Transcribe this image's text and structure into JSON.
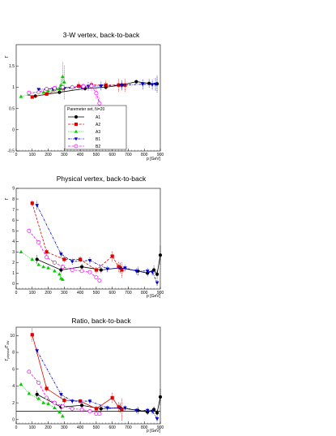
{
  "chart_data": [
    {
      "type": "scatter",
      "title": "3-W vertex, back-to-back",
      "xlabel": "p [GeV]",
      "ylabel": "Γ",
      "xlim": [
        0,
        900
      ],
      "ylim": [
        -0.5,
        2
      ],
      "xticks": [
        "0",
        "100",
        "200",
        "300",
        "400",
        "500",
        "600",
        "700",
        "800",
        "900"
      ],
      "yticks": [
        "-0.5",
        "0",
        "0.5",
        "1",
        "1.5"
      ],
      "legend": {
        "title": "Paremeter set, N=20",
        "placement": "lower-center"
      },
      "series": [
        {
          "name": "A1",
          "style": "solid",
          "color": "#000000",
          "marker": "circle",
          "x": [
            120,
            270,
            430,
            560,
            660,
            750,
            830,
            880
          ],
          "y": [
            0.79,
            0.88,
            0.97,
            1.0,
            1.05,
            1.13,
            1.09,
            1.08
          ],
          "err": [
            0.02,
            0.04,
            0.05,
            0.05,
            0.08,
            0.04,
            0.1,
            0.2
          ]
        },
        {
          "name": "A2",
          "style": "dashed",
          "color": "#e00000",
          "marker": "square",
          "x": [
            100,
            190,
            290,
            390,
            470,
            560,
            640,
            680
          ],
          "y": [
            0.77,
            0.84,
            0.98,
            1.03,
            1.05,
            1.05,
            1.05,
            1.05
          ],
          "err": [
            0.03,
            0.04,
            0.07,
            0.1,
            0.08,
            0.1,
            0.15,
            0.15
          ]
        },
        {
          "name": "A3",
          "style": "dotted",
          "color": "#00cc00",
          "marker": "triangle-up",
          "x": [
            30,
            80,
            140,
            170,
            200,
            230,
            250,
            270,
            280,
            290,
            300
          ],
          "y": [
            0.78,
            0.83,
            0.9,
            0.88,
            0.91,
            0.94,
            0.97,
            0.96,
            1.05,
            1.25,
            1.12
          ],
          "err": [
            0.02,
            0.02,
            0.03,
            0.03,
            0.04,
            0.05,
            0.08,
            0.1,
            0.15,
            0.35,
            0.4
          ]
        },
        {
          "name": "B1",
          "style": "dash-dot",
          "color": "#0000cc",
          "marker": "triangle-down",
          "x": [
            140,
            230,
            300,
            410,
            450,
            530,
            660,
            790,
            850,
            870
          ],
          "y": [
            0.95,
            0.96,
            0.97,
            1.0,
            1.02,
            1.03,
            1.05,
            1.07,
            1.06,
            1.07
          ],
          "err": [
            0.03,
            0.04,
            0.05,
            0.08,
            0.1,
            0.1,
            0.12,
            0.12,
            0.12,
            0.15
          ]
        },
        {
          "name": "B2",
          "style": "dashed",
          "color": "#ff00ff",
          "marker": "circle-open",
          "x": [
            80,
            140,
            190,
            240,
            290,
            350,
            420,
            470,
            500,
            520
          ],
          "y": [
            0.87,
            0.88,
            0.96,
            0.98,
            1.0,
            1.0,
            1.02,
            1.03,
            0.86,
            0.62
          ],
          "err": [
            0.02,
            0.02,
            0.03,
            0.04,
            0.05,
            0.06,
            0.08,
            0.1,
            0.12,
            0.15
          ]
        }
      ]
    },
    {
      "type": "scatter",
      "title": "Physical vertex, back-to-back",
      "xlabel": "p [GeV]",
      "ylabel": "Γ",
      "xlim": [
        0,
        900
      ],
      "ylim": [
        -0.5,
        9
      ],
      "xticks": [
        "0",
        "100",
        "200",
        "300",
        "400",
        "500",
        "600",
        "700",
        "800",
        "900"
      ],
      "yticks": [
        "0",
        "1",
        "2",
        "3",
        "4",
        "5",
        "6",
        "7",
        "8",
        "9"
      ],
      "series": [
        {
          "name": "A1",
          "style": "solid",
          "color": "#000000",
          "marker": "circle",
          "x": [
            130,
            280,
            410,
            530,
            650,
            760,
            820,
            860,
            880,
            900
          ],
          "y": [
            2.3,
            1.3,
            1.6,
            1.3,
            1.5,
            1.2,
            1.0,
            1.3,
            0.9,
            2.7
          ],
          "err": [
            0.4,
            0.3,
            0.3,
            0.3,
            0.5,
            0.4,
            0.3,
            0.4,
            0.4,
            0.9
          ]
        },
        {
          "name": "A2",
          "style": "dashed",
          "color": "#e00000",
          "marker": "square",
          "x": [
            100,
            190,
            300,
            400,
            500,
            600,
            640,
            660
          ],
          "y": [
            7.6,
            3.0,
            2.3,
            2.3,
            1.3,
            2.6,
            1.6,
            1.3
          ],
          "err": [
            0.3,
            0.3,
            0.3,
            0.3,
            0.3,
            0.5,
            0.5,
            0.7
          ]
        },
        {
          "name": "A3",
          "style": "dotted",
          "color": "#00cc00",
          "marker": "triangle-up",
          "x": [
            30,
            100,
            140,
            170,
            200,
            240,
            270,
            280,
            290
          ],
          "y": [
            3.0,
            2.3,
            1.8,
            1.6,
            1.5,
            1.2,
            0.9,
            0.5,
            0.4
          ],
          "err": [
            0.1,
            0.1,
            0.1,
            0.1,
            0.1,
            0.1,
            0.1,
            0.1,
            0.1
          ]
        },
        {
          "name": "B1",
          "style": "dash-dot",
          "color": "#0000cc",
          "marker": "triangle-down",
          "x": [
            130,
            280,
            350,
            460,
            570,
            680,
            750,
            820,
            850,
            880
          ],
          "y": [
            7.4,
            2.8,
            2.1,
            2.2,
            1.4,
            1.5,
            1.2,
            1.2,
            1.1,
            0.1
          ],
          "err": [
            0.4,
            0.3,
            0.3,
            0.3,
            0.3,
            0.3,
            0.3,
            0.3,
            0.3,
            0.3
          ]
        },
        {
          "name": "B2",
          "style": "dashed",
          "color": "#ff00ff",
          "marker": "circle-open",
          "x": [
            80,
            140,
            190,
            240,
            290,
            350,
            410,
            460,
            500,
            520
          ],
          "y": [
            5.0,
            3.9,
            2.5,
            2.0,
            1.6,
            1.3,
            1.2,
            1.1,
            0.6,
            0.3
          ],
          "err": [
            0.1,
            0.1,
            0.1,
            0.1,
            0.1,
            0.1,
            0.1,
            0.1,
            0.1,
            0.2
          ]
        }
      ]
    },
    {
      "type": "scatter",
      "title": "Ratio, back-to-back",
      "xlabel": "p [GeV]",
      "ylabel": "Γphysical/Γ3W",
      "xlim": [
        0,
        900
      ],
      "ylim": [
        -0.5,
        11
      ],
      "xticks": [
        "0",
        "100",
        "200",
        "300",
        "400",
        "500",
        "600",
        "700",
        "800",
        "900"
      ],
      "yticks": [
        "0",
        "2",
        "4",
        "6",
        "8",
        "10"
      ],
      "reference_line": 1,
      "series": [
        {
          "name": "A1",
          "style": "solid",
          "color": "#000000",
          "marker": "circle",
          "x": [
            130,
            280,
            410,
            530,
            650,
            760,
            820,
            860,
            880,
            900
          ],
          "y": [
            3.0,
            1.5,
            1.7,
            1.3,
            1.4,
            1.1,
            0.9,
            1.2,
            0.8,
            2.7
          ],
          "err": [
            0.5,
            0.4,
            0.4,
            0.4,
            0.6,
            0.4,
            0.3,
            0.4,
            0.4,
            1.0
          ]
        },
        {
          "name": "A2",
          "style": "solid",
          "color": "#e00000",
          "marker": "square",
          "x": [
            100,
            190,
            300,
            400,
            500,
            600,
            640,
            660
          ],
          "y": [
            10.1,
            3.7,
            2.3,
            2.2,
            1.3,
            2.6,
            1.5,
            1.2
          ],
          "err": [
            0.8,
            0.4,
            0.4,
            0.3,
            0.4,
            0.6,
            0.6,
            1.3
          ]
        },
        {
          "name": "A3",
          "style": "dotted",
          "color": "#00cc00",
          "marker": "triangle-up",
          "x": [
            30,
            80,
            140,
            170,
            200,
            240,
            270,
            290
          ],
          "y": [
            4.2,
            3.1,
            2.5,
            2.0,
            1.9,
            1.4,
            0.9,
            0.4
          ],
          "err": [
            0.1,
            0.1,
            0.1,
            0.1,
            0.1,
            0.1,
            0.1,
            0.1
          ]
        },
        {
          "name": "B1",
          "style": "dash-dot",
          "color": "#0000cc",
          "marker": "triangle-down",
          "x": [
            130,
            280,
            350,
            460,
            570,
            680,
            750,
            820,
            850,
            880
          ],
          "y": [
            8.2,
            3.0,
            2.2,
            2.2,
            1.4,
            1.4,
            1.1,
            1.1,
            1.0,
            0.1
          ],
          "err": [
            0.4,
            0.4,
            0.3,
            0.3,
            0.3,
            0.3,
            0.3,
            0.3,
            0.3,
            0.3
          ]
        },
        {
          "name": "B2",
          "style": "dashed",
          "color": "#ff00ff",
          "marker": "circle-open",
          "x": [
            80,
            140,
            190,
            240,
            290,
            350,
            410,
            460,
            500,
            520
          ],
          "y": [
            5.7,
            4.4,
            2.6,
            2.0,
            1.6,
            1.3,
            1.2,
            1.0,
            0.7,
            0.7
          ],
          "err": [
            0.1,
            0.1,
            0.1,
            0.1,
            0.1,
            0.1,
            0.1,
            0.1,
            0.1,
            0.2
          ]
        }
      ]
    }
  ]
}
